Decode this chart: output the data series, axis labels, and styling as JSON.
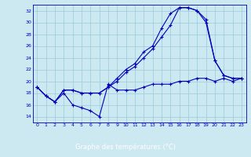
{
  "title": "",
  "xlabel": "Graphe des températures (°C)",
  "ylabel": "",
  "xlim": [
    -0.5,
    23.5
  ],
  "ylim": [
    13,
    33
  ],
  "yticks": [
    14,
    16,
    18,
    20,
    22,
    24,
    26,
    28,
    30,
    32
  ],
  "xticks": [
    0,
    1,
    2,
    3,
    4,
    5,
    6,
    7,
    8,
    9,
    10,
    11,
    12,
    13,
    14,
    15,
    16,
    17,
    18,
    19,
    20,
    21,
    22,
    23
  ],
  "bg_color": "#cce8f0",
  "grid_color": "#99ccdd",
  "line_color": "#0000bb",
  "line1_x": [
    0,
    1,
    2,
    3,
    4,
    5,
    6,
    7,
    8,
    9,
    10,
    11,
    12,
    13,
    14,
    15,
    16,
    17,
    18,
    19,
    20,
    21,
    22,
    23
  ],
  "line1_y": [
    19.0,
    17.5,
    16.5,
    18.0,
    16.0,
    15.5,
    15.0,
    14.0,
    19.5,
    18.5,
    18.5,
    18.5,
    19.0,
    19.5,
    19.5,
    19.5,
    20.0,
    20.0,
    20.5,
    20.5,
    20.0,
    20.5,
    20.0,
    20.5
  ],
  "line2_x": [
    0,
    1,
    2,
    3,
    4,
    5,
    6,
    7,
    8,
    9,
    10,
    11,
    12,
    13,
    14,
    15,
    16,
    17,
    18,
    19,
    20,
    21,
    22,
    23
  ],
  "line2_y": [
    19.0,
    17.5,
    16.5,
    18.5,
    18.5,
    18.0,
    18.0,
    18.0,
    19.0,
    20.0,
    21.5,
    22.5,
    24.0,
    25.5,
    27.5,
    29.5,
    32.5,
    32.5,
    32.0,
    30.0,
    23.5,
    21.0,
    20.5,
    20.5
  ],
  "line3_x": [
    0,
    1,
    2,
    3,
    4,
    5,
    6,
    7,
    8,
    9,
    10,
    11,
    12,
    13,
    14,
    15,
    16,
    17,
    18,
    19,
    20,
    21,
    22,
    23
  ],
  "line3_y": [
    19.0,
    17.5,
    16.5,
    18.5,
    18.5,
    18.0,
    18.0,
    18.0,
    19.0,
    20.5,
    22.0,
    23.0,
    25.0,
    26.0,
    29.0,
    31.5,
    32.5,
    32.5,
    32.0,
    30.5,
    23.5,
    21.0,
    20.5,
    20.5
  ],
  "marker": "+",
  "markersize": 3,
  "linewidth": 0.8,
  "tick_fontsize": 4.5,
  "xlabel_fontsize": 6.0
}
